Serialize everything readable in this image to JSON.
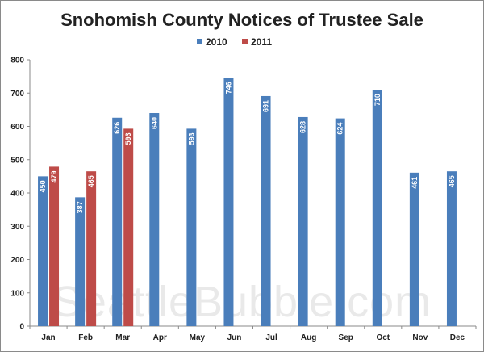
{
  "chart_data": {
    "type": "bar",
    "title": "Snohomish County Notices of Trustee Sale",
    "categories": [
      "Jan",
      "Feb",
      "Mar",
      "Apr",
      "May",
      "Jun",
      "Jul",
      "Aug",
      "Sep",
      "Oct",
      "Nov",
      "Dec"
    ],
    "series": [
      {
        "name": "2010",
        "color": "#4a7ebb",
        "values": [
          450,
          387,
          626,
          640,
          593,
          746,
          691,
          628,
          624,
          710,
          461,
          465
        ]
      },
      {
        "name": "2011",
        "color": "#be4b48",
        "values": [
          479,
          465,
          593,
          null,
          null,
          null,
          null,
          null,
          null,
          null,
          null,
          null
        ]
      }
    ],
    "ylim": [
      0,
      800
    ],
    "yticks": [
      0,
      100,
      200,
      300,
      400,
      500,
      600,
      700,
      800
    ],
    "xlabel": "",
    "ylabel": "",
    "grid": false,
    "legend": "top-center",
    "data_labels": true,
    "watermark": "SeattleBubble.com"
  }
}
